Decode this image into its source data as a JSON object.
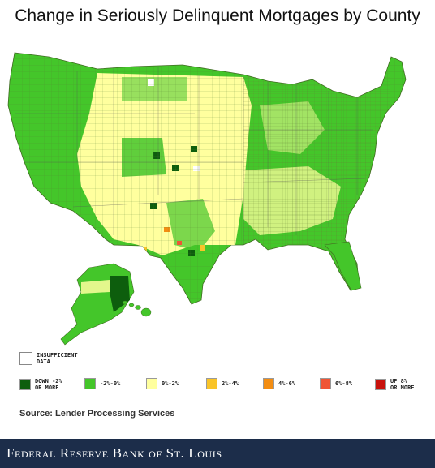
{
  "title": "Change in Seriously Delinquent Mortgages by County",
  "colors": {
    "insufficient": "#ffffff",
    "down_2_or_more": "#0d5e0d",
    "minus2_to_0": "#44c62a",
    "zero_to_2": "#ffff9e",
    "two_to_4": "#f9c428",
    "four_to_6": "#f38d12",
    "six_to_8": "#f05535",
    "up_8_or_more": "#c8120c",
    "county_border": "#4d7a2a",
    "footer_bg": "#1c2d4a"
  },
  "legend": {
    "insufficient": "INSUFFICIENT\nDATA",
    "items": [
      {
        "label": "DOWN -2%\nOR MORE",
        "color": "#0d5e0d"
      },
      {
        "label": "-2%-0%",
        "color": "#44c62a"
      },
      {
        "label": "0%-2%",
        "color": "#ffff9e"
      },
      {
        "label": "2%-4%",
        "color": "#f9c428"
      },
      {
        "label": "4%-6%",
        "color": "#f38d12"
      },
      {
        "label": "6%-8%",
        "color": "#f05535"
      },
      {
        "label": "UP 8%\nOR MORE",
        "color": "#c8120c"
      }
    ]
  },
  "source": "Source: Lender Processing Services",
  "footer": {
    "brand": "Federal Reserve Bank of St. Louis"
  },
  "map_regions": [
    {
      "name": "us-west",
      "category": "minus2_to_0"
    },
    {
      "name": "us-plains",
      "category": "zero_to_2"
    },
    {
      "name": "us-east",
      "category": "minus2_to_0"
    },
    {
      "name": "alaska",
      "category": "minus2_to_0"
    },
    {
      "name": "hawaii",
      "category": "minus2_to_0"
    }
  ]
}
